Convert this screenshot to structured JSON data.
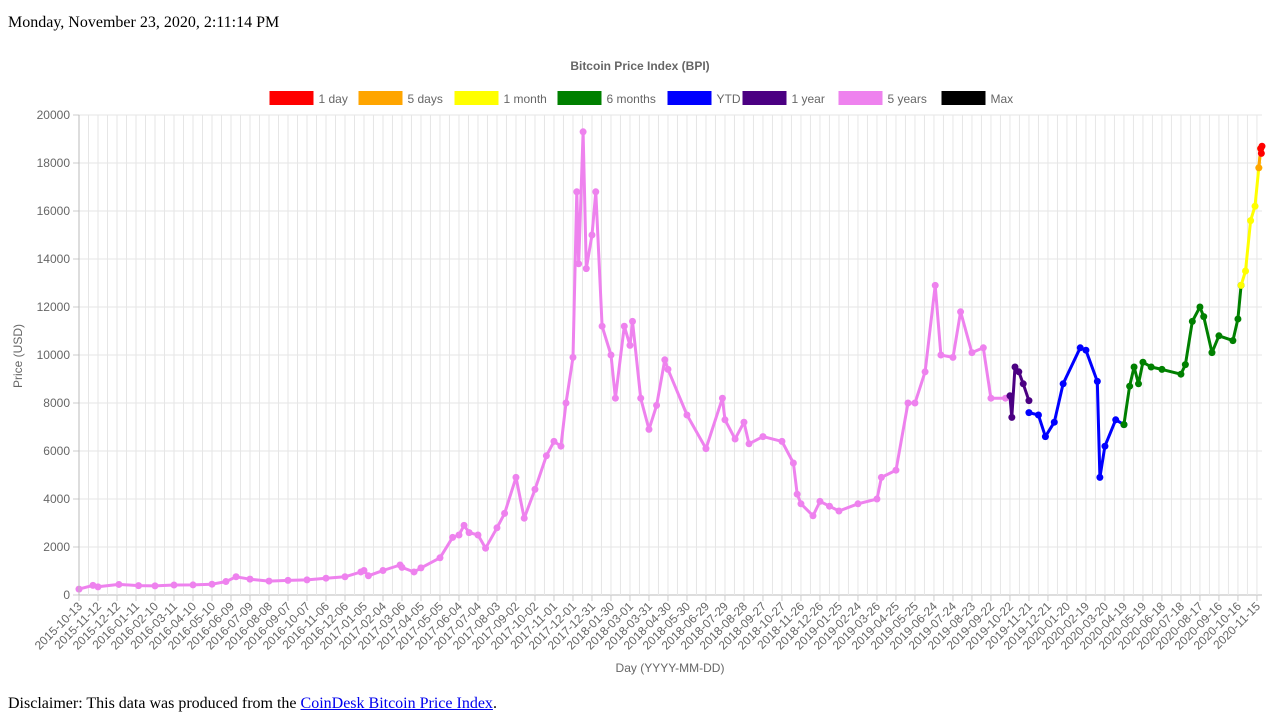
{
  "page": {
    "timestamp": "Monday, November 23, 2020, 2:11:14 PM",
    "disclaimer_prefix": "Disclaimer: This data was produced from the ",
    "disclaimer_link": "CoinDesk Bitcoin Price Index",
    "disclaimer_suffix": "."
  },
  "chart_data": {
    "type": "line",
    "title": "Bitcoin Price Index (BPI)",
    "xlabel": "Day (YYYY-MM-DD)",
    "ylabel": "Price (USD)",
    "ylim": [
      0,
      20000
    ],
    "yticks": [
      0,
      2000,
      4000,
      6000,
      8000,
      10000,
      12000,
      14000,
      16000,
      18000,
      20000
    ],
    "grid": true,
    "legend_position": "top",
    "x_tick_labels": [
      "2015-10-13",
      "2015-11-12",
      "2015-12-12",
      "2016-01-11",
      "2016-02-10",
      "2016-03-11",
      "2016-04-10",
      "2016-05-10",
      "2016-06-09",
      "2016-07-09",
      "2016-08-08",
      "2016-09-07",
      "2016-10-07",
      "2016-11-06",
      "2016-12-06",
      "2017-01-05",
      "2017-02-04",
      "2017-03-06",
      "2017-04-05",
      "2017-05-05",
      "2017-06-04",
      "2017-07-04",
      "2017-08-03",
      "2017-09-02",
      "2017-10-02",
      "2017-11-01",
      "2017-12-01",
      "2017-12-31",
      "2018-01-30",
      "2018-03-01",
      "2018-03-31",
      "2018-04-30",
      "2018-05-30",
      "2018-06-29",
      "2018-07-29",
      "2018-08-28",
      "2018-09-27",
      "2018-10-27",
      "2018-11-26",
      "2018-12-26",
      "2019-01-25",
      "2019-02-24",
      "2019-03-26",
      "2019-04-25",
      "2019-05-25",
      "2019-06-24",
      "2019-07-24",
      "2019-08-23",
      "2019-09-22",
      "2019-10-22",
      "2019-11-21",
      "2019-12-21",
      "2020-01-20",
      "2020-02-19",
      "2020-03-20",
      "2020-04-19",
      "2020-05-19",
      "2020-06-18",
      "2020-07-18",
      "2020-08-17",
      "2020-09-16",
      "2020-10-16",
      "2020-11-15"
    ],
    "series": [
      {
        "name": "5 years",
        "color": "#ee82ee",
        "x": [
          "2015-10-13",
          "2015-11-04",
          "2015-11-12",
          "2015-12-15",
          "2016-01-15",
          "2016-02-10",
          "2016-03-11",
          "2016-04-10",
          "2016-05-10",
          "2016-06-01",
          "2016-06-17",
          "2016-07-09",
          "2016-08-08",
          "2016-09-07",
          "2016-10-07",
          "2016-11-06",
          "2016-12-06",
          "2016-12-31",
          "2017-01-05",
          "2017-01-12",
          "2017-02-04",
          "2017-03-03",
          "2017-03-06",
          "2017-03-25",
          "2017-04-05",
          "2017-05-05",
          "2017-05-25",
          "2017-06-04",
          "2017-06-12",
          "2017-06-20",
          "2017-07-04",
          "2017-07-16",
          "2017-08-03",
          "2017-08-15",
          "2017-09-02",
          "2017-09-15",
          "2017-10-02",
          "2017-10-20",
          "2017-11-01",
          "2017-11-12",
          "2017-11-20",
          "2017-12-01",
          "2017-12-07",
          "2017-12-10",
          "2017-12-17",
          "2017-12-22",
          "2017-12-31",
          "2018-01-06",
          "2018-01-16",
          "2018-01-30",
          "2018-02-06",
          "2018-02-20",
          "2018-03-01",
          "2018-03-05",
          "2018-03-18",
          "2018-03-31",
          "2018-04-12",
          "2018-04-25",
          "2018-04-30",
          "2018-05-30",
          "2018-06-29",
          "2018-07-25",
          "2018-07-29",
          "2018-08-14",
          "2018-08-28",
          "2018-09-05",
          "2018-09-27",
          "2018-10-27",
          "2018-11-14",
          "2018-11-20",
          "2018-11-26",
          "2018-12-15",
          "2018-12-26",
          "2019-01-10",
          "2019-01-25",
          "2019-02-24",
          "2019-03-26",
          "2019-04-02",
          "2019-04-25",
          "2019-05-14",
          "2019-05-25",
          "2019-06-10",
          "2019-06-26",
          "2019-07-05",
          "2019-07-24",
          "2019-08-05",
          "2019-08-23",
          "2019-09-10",
          "2019-09-22",
          "2019-10-15"
        ],
        "y": [
          245,
          400,
          340,
          440,
          390,
          380,
          415,
          420,
          450,
          560,
          760,
          660,
          580,
          610,
          630,
          700,
          760,
          960,
          1020,
          800,
          1020,
          1250,
          1150,
          960,
          1130,
          1550,
          2400,
          2500,
          2900,
          2600,
          2500,
          1950,
          2800,
          3400,
          4900,
          3200,
          4400,
          5800,
          6400,
          6200,
          8000,
          9900,
          16800,
          13800,
          19300,
          13600,
          15000,
          16800,
          11200,
          10000,
          8200,
          11200,
          10400,
          11400,
          8200,
          6900,
          7900,
          9800,
          9400,
          7500,
          6100,
          8200,
          7300,
          6500,
          7200,
          6300,
          6600,
          6400,
          5500,
          4200,
          3800,
          3300,
          3900,
          3700,
          3500,
          3800,
          4000,
          4900,
          5200,
          8000,
          8000,
          9300,
          12900,
          10000,
          9900,
          11800,
          10100,
          10300,
          8200,
          8200
        ]
      },
      {
        "name": "1 year",
        "color": "#4b0082",
        "x": [
          "2019-10-22",
          "2019-10-25",
          "2019-10-30",
          "2019-11-05",
          "2019-11-12",
          "2019-11-21"
        ],
        "y": [
          8300,
          7400,
          9500,
          9300,
          8800,
          8100
        ]
      },
      {
        "name": "YTD",
        "color": "#0000ff",
        "x": [
          "2019-11-21",
          "2019-12-06",
          "2019-12-17",
          "2019-12-31",
          "2020-01-14",
          "2020-02-10",
          "2020-02-19",
          "2020-03-08",
          "2020-03-12",
          "2020-03-20",
          "2020-04-06",
          "2020-04-19"
        ],
        "y": [
          7600,
          7500,
          6600,
          7200,
          8800,
          10300,
          10200,
          8900,
          4900,
          6200,
          7300,
          7100
        ]
      },
      {
        "name": "6 months",
        "color": "#008000",
        "x": [
          "2020-04-19",
          "2020-04-28",
          "2020-05-05",
          "2020-05-12",
          "2020-05-19",
          "2020-06-01",
          "2020-06-18",
          "2020-07-18",
          "2020-07-25",
          "2020-08-05",
          "2020-08-17",
          "2020-08-23",
          "2020-09-05",
          "2020-09-16",
          "2020-10-08",
          "2020-10-16",
          "2020-10-21"
        ],
        "y": [
          7100,
          8700,
          9500,
          8800,
          9700,
          9500,
          9400,
          9200,
          9600,
          11400,
          12000,
          11600,
          10100,
          10800,
          10600,
          11500,
          12900
        ]
      },
      {
        "name": "1 month",
        "color": "#ffff00",
        "x": [
          "2020-10-21",
          "2020-10-28",
          "2020-11-05",
          "2020-11-12",
          "2020-11-18",
          "2020-11-21"
        ],
        "y": [
          12900,
          13500,
          15600,
          16200,
          17800,
          18600
        ]
      },
      {
        "name": "5 days",
        "color": "#ffa500",
        "x": [
          "2020-11-18",
          "2020-11-21"
        ],
        "y": [
          17800,
          18600
        ]
      },
      {
        "name": "1 day",
        "color": "#ff0000",
        "x": [
          "2020-11-21",
          "2020-11-22",
          "2020-11-23"
        ],
        "y": [
          18600,
          18400,
          18700
        ]
      },
      {
        "name": "Max",
        "color": "#000000",
        "x": [],
        "y": []
      }
    ]
  }
}
